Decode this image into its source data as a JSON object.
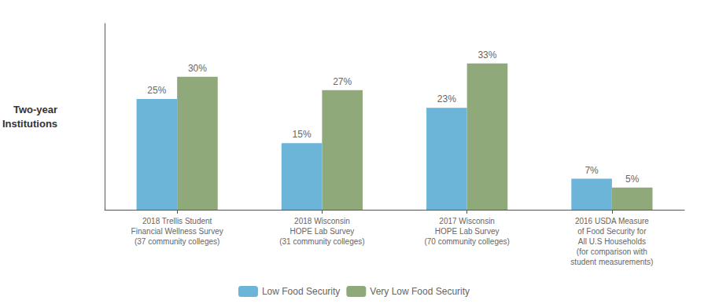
{
  "chart_data": {
    "type": "bar",
    "ylabel": "Two-year\nInstitutions",
    "categories": [
      "2018 Trellis Student\nFinancial Wellness Survey\n(37 community colleges)",
      "2018 Wisconsin\nHOPE Lab Survey\n(31 community colleges)",
      "2017 Wisconsin\nHOPE Lab Survey\n(70 community colleges)",
      "2016 USDA Measure\nof Food Security for\nAll U.S Households\n(for comparison with\nstudent measurements)"
    ],
    "series": [
      {
        "name": "Low Food Security",
        "color": "#6CB4D8",
        "values": [
          25,
          15,
          23,
          7
        ],
        "value_labels": [
          "25%",
          "15%",
          "23%",
          "7%"
        ]
      },
      {
        "name": "Very Low Food Security",
        "color": "#90A97A",
        "values": [
          30,
          27,
          33,
          5
        ],
        "value_labels": [
          "30%",
          "27%",
          "33%",
          "5%"
        ]
      }
    ],
    "ylim": [
      0,
      42
    ],
    "grid": false,
    "legend": "bottom",
    "data_labels": true,
    "tick_labels": "x"
  }
}
